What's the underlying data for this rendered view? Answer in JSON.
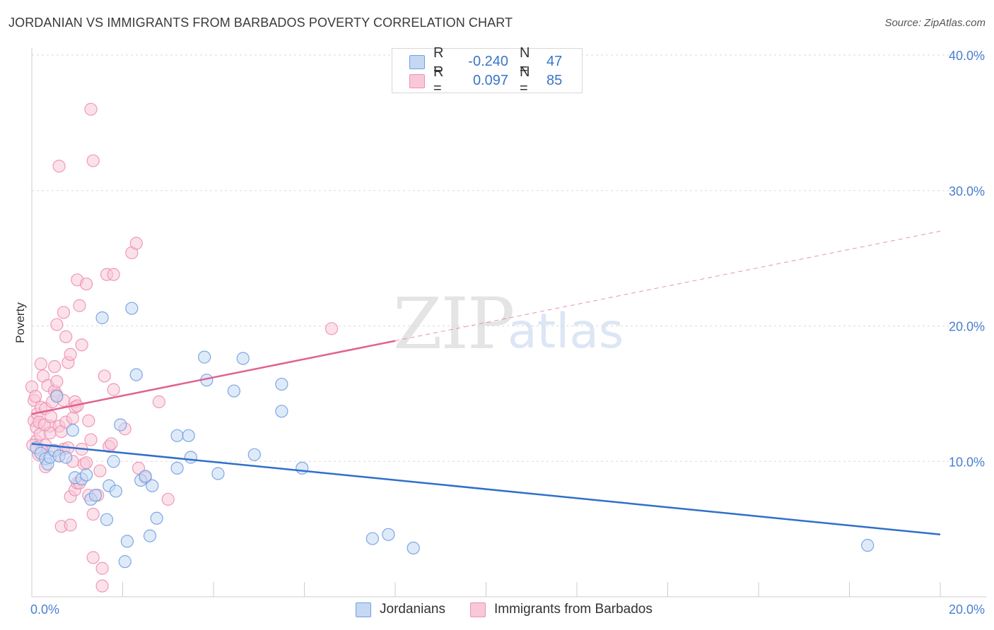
{
  "title": "JORDANIAN VS IMMIGRANTS FROM BARBADOS POVERTY CORRELATION CHART",
  "source": "Source: ZipAtlas.com",
  "watermark": {
    "zip": "ZIP",
    "atlas": "atlas"
  },
  "colors": {
    "jordanians": "#6fa0e0",
    "jordanians_fill": "#c4d8f4",
    "jordanians_line": "#2f6fcc",
    "barbados": "#ef8fb0",
    "barbados_fill": "#f8c8d8",
    "barbados_line": "#e0628f",
    "tick": "#4a7fd0"
  },
  "legend": {
    "rows": [
      {
        "r_label": "R =",
        "r_value": "-0.240",
        "n_label": "N =",
        "n_value": "47"
      },
      {
        "r_label": "R =",
        "r_value": "0.097",
        "n_label": "N =",
        "n_value": "85"
      }
    ]
  },
  "bottom_legend": {
    "jordanians": "Jordanians",
    "barbados": "Immigrants from Barbados"
  },
  "chart_data": {
    "type": "scatter",
    "title": "JORDANIAN VS IMMIGRANTS FROM BARBADOS POVERTY CORRELATION CHART",
    "xlabel": "",
    "ylabel": "Poverty",
    "xlim": [
      0,
      20
    ],
    "ylim": [
      0,
      40
    ],
    "x_tick_labels": [
      "0.0%",
      "20.0%"
    ],
    "y_ticks": [
      10,
      20,
      30,
      40
    ],
    "y_tick_labels": [
      "10.0%",
      "20.0%",
      "30.0%",
      "40.0%"
    ],
    "series": [
      {
        "name": "Jordanians",
        "points": [
          [
            0.1,
            11.0
          ],
          [
            0.2,
            10.6
          ],
          [
            0.3,
            10.2
          ],
          [
            0.35,
            9.8
          ],
          [
            0.4,
            10.3
          ],
          [
            0.5,
            10.8
          ],
          [
            0.55,
            14.8
          ],
          [
            0.6,
            10.4
          ],
          [
            0.75,
            10.3
          ],
          [
            0.9,
            12.3
          ],
          [
            0.95,
            8.8
          ],
          [
            1.1,
            8.7
          ],
          [
            1.2,
            9.0
          ],
          [
            1.3,
            7.2
          ],
          [
            1.4,
            7.5
          ],
          [
            1.55,
            20.6
          ],
          [
            1.65,
            5.7
          ],
          [
            1.7,
            8.2
          ],
          [
            1.8,
            10.0
          ],
          [
            1.85,
            7.8
          ],
          [
            1.95,
            12.7
          ],
          [
            2.05,
            2.6
          ],
          [
            2.1,
            4.1
          ],
          [
            2.2,
            21.3
          ],
          [
            2.3,
            16.4
          ],
          [
            2.4,
            8.6
          ],
          [
            2.5,
            8.9
          ],
          [
            2.6,
            4.5
          ],
          [
            2.65,
            8.2
          ],
          [
            2.75,
            5.8
          ],
          [
            3.2,
            11.9
          ],
          [
            3.2,
            9.5
          ],
          [
            3.45,
            11.9
          ],
          [
            3.5,
            10.3
          ],
          [
            3.8,
            17.7
          ],
          [
            3.85,
            16.0
          ],
          [
            4.1,
            9.1
          ],
          [
            4.45,
            15.2
          ],
          [
            4.65,
            17.6
          ],
          [
            4.9,
            10.5
          ],
          [
            5.5,
            15.7
          ],
          [
            5.5,
            13.7
          ],
          [
            5.95,
            9.5
          ],
          [
            7.5,
            4.3
          ],
          [
            7.85,
            4.6
          ],
          [
            8.4,
            3.6
          ],
          [
            18.4,
            3.8
          ]
        ]
      },
      {
        "name": "Immigrants from Barbados",
        "points": [
          [
            0.0,
            15.5
          ],
          [
            0.05,
            13.0
          ],
          [
            0.05,
            14.5
          ],
          [
            0.1,
            12.5
          ],
          [
            0.1,
            11.5
          ],
          [
            0.12,
            13.5
          ],
          [
            0.15,
            10.5
          ],
          [
            0.18,
            12.0
          ],
          [
            0.2,
            17.2
          ],
          [
            0.2,
            14.0
          ],
          [
            0.25,
            16.3
          ],
          [
            0.3,
            13.9
          ],
          [
            0.3,
            11.2
          ],
          [
            0.3,
            9.6
          ],
          [
            0.35,
            15.6
          ],
          [
            0.4,
            12.6
          ],
          [
            0.4,
            12.1
          ],
          [
            0.45,
            14.4
          ],
          [
            0.45,
            10.8
          ],
          [
            0.5,
            17.0
          ],
          [
            0.5,
            15.2
          ],
          [
            0.55,
            15.9
          ],
          [
            0.55,
            20.1
          ],
          [
            0.55,
            14.9
          ],
          [
            0.6,
            10.4
          ],
          [
            0.6,
            31.8
          ],
          [
            0.6,
            12.6
          ],
          [
            0.65,
            5.2
          ],
          [
            0.65,
            12.2
          ],
          [
            0.7,
            21.0
          ],
          [
            0.7,
            14.5
          ],
          [
            0.7,
            10.9
          ],
          [
            0.75,
            12.9
          ],
          [
            0.75,
            19.2
          ],
          [
            0.8,
            17.3
          ],
          [
            0.8,
            11.0
          ],
          [
            0.85,
            7.4
          ],
          [
            0.85,
            17.9
          ],
          [
            0.85,
            5.3
          ],
          [
            0.9,
            10.0
          ],
          [
            0.9,
            13.2
          ],
          [
            0.95,
            14.4
          ],
          [
            0.95,
            14.0
          ],
          [
            0.95,
            7.9
          ],
          [
            1.0,
            14.1
          ],
          [
            1.0,
            8.4
          ],
          [
            1.0,
            23.4
          ],
          [
            1.05,
            21.5
          ],
          [
            1.05,
            8.4
          ],
          [
            1.1,
            18.6
          ],
          [
            1.1,
            10.9
          ],
          [
            1.15,
            9.8
          ],
          [
            1.2,
            23.1
          ],
          [
            1.2,
            9.9
          ],
          [
            1.25,
            13.0
          ],
          [
            1.25,
            7.5
          ],
          [
            1.3,
            36.0
          ],
          [
            1.3,
            11.6
          ],
          [
            1.35,
            32.2
          ],
          [
            1.35,
            6.1
          ],
          [
            1.35,
            2.9
          ],
          [
            1.45,
            7.5
          ],
          [
            1.5,
            9.3
          ],
          [
            1.55,
            0.8
          ],
          [
            1.55,
            2.1
          ],
          [
            1.6,
            16.3
          ],
          [
            1.65,
            23.8
          ],
          [
            1.7,
            11.1
          ],
          [
            1.75,
            11.3
          ],
          [
            1.8,
            23.8
          ],
          [
            1.8,
            15.3
          ],
          [
            2.05,
            12.4
          ],
          [
            2.2,
            25.4
          ],
          [
            2.3,
            26.1
          ],
          [
            2.35,
            9.5
          ],
          [
            2.5,
            8.8
          ],
          [
            2.8,
            14.4
          ],
          [
            3.0,
            7.2
          ],
          [
            0.02,
            11.2
          ],
          [
            0.08,
            14.8
          ],
          [
            0.16,
            12.9
          ],
          [
            0.22,
            10.8
          ],
          [
            0.28,
            12.7
          ],
          [
            6.6,
            19.8
          ],
          [
            0.42,
            13.3
          ]
        ]
      }
    ],
    "trend_lines": [
      {
        "series": "Jordanians",
        "x": [
          0,
          20
        ],
        "y": [
          11.3,
          4.6
        ],
        "style": "solid"
      },
      {
        "series": "Immigrants from Barbados",
        "x": [
          0,
          8
        ],
        "y": [
          13.5,
          18.9
        ],
        "style": "solid"
      },
      {
        "series": "Immigrants from Barbados",
        "x": [
          8,
          20
        ],
        "y": [
          18.9,
          27.0
        ],
        "style": "dashed"
      }
    ]
  }
}
